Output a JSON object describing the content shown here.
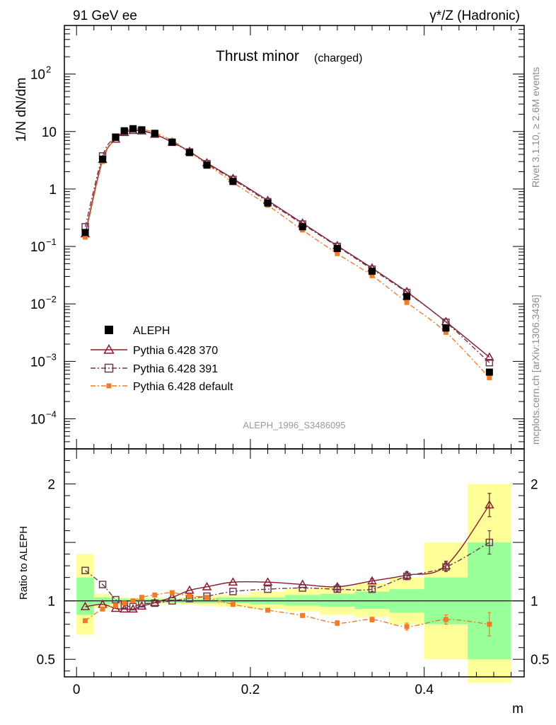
{
  "header": {
    "left": "91 GeV ee",
    "right": "γ*/Z (Hadronic)"
  },
  "side_labels": {
    "rivet": "Rivet 3.1.10, ≥ 2.6M events",
    "mcplots": "mcplots.cern.ch [arXiv:1306.3436]"
  },
  "chart_data": {
    "type": "line",
    "title_main": "Thrust minor",
    "title_sub": "(charged)",
    "analysis": "ALEPH_1996_S3486095",
    "xlabel": "m",
    "ylabel_main": "1/N dN/dm",
    "ylabel_ratio": "Ratio to ALEPH",
    "main_yscale": "log",
    "main_ylim": [
      3e-05,
      700
    ],
    "main_yticks": [
      {
        "v": 0.0001,
        "m": "10",
        "e": "−4"
      },
      {
        "v": 0.001,
        "m": "10",
        "e": "−3"
      },
      {
        "v": 0.01,
        "m": "10",
        "e": "−2"
      },
      {
        "v": 0.1,
        "m": "10",
        "e": "−1"
      },
      {
        "v": 1,
        "m": "1",
        "e": ""
      },
      {
        "v": 10,
        "m": "10",
        "e": ""
      },
      {
        "v": 100,
        "m": "10",
        "e": "2"
      }
    ],
    "xlim": [
      -0.014,
      0.515
    ],
    "xticks": [
      {
        "v": 0,
        "l": "0"
      },
      {
        "v": 0.2,
        "l": "0.2"
      },
      {
        "v": 0.4,
        "l": "0.4"
      }
    ],
    "ratio_ylim": [
      0.35,
      2.3
    ],
    "ratio_yticks": [
      {
        "v": 0.5,
        "l": "0.5"
      },
      {
        "v": 1,
        "l": "1"
      },
      {
        "v": 2,
        "l": "2"
      }
    ],
    "x": [
      0.01,
      0.03,
      0.045,
      0.055,
      0.065,
      0.075,
      0.09,
      0.11,
      0.13,
      0.15,
      0.18,
      0.22,
      0.26,
      0.3,
      0.34,
      0.38,
      0.425,
      0.475
    ],
    "bin_edges": [
      0,
      0.02,
      0.04,
      0.05,
      0.06,
      0.07,
      0.08,
      0.1,
      0.12,
      0.14,
      0.16,
      0.2,
      0.24,
      0.28,
      0.32,
      0.36,
      0.4,
      0.45,
      0.5
    ],
    "legend": [
      {
        "name": "ALEPH"
      },
      {
        "name": "Pythia 6.428 370"
      },
      {
        "name": "Pythia 6.428 391"
      },
      {
        "name": "Pythia 6.428 default"
      }
    ],
    "series": [
      {
        "name": "ALEPH",
        "marker": "filled-square",
        "color": "#000000",
        "values": [
          0.175,
          3.3,
          7.9,
          10.3,
          11.2,
          10.7,
          9.3,
          6.5,
          4.3,
          2.6,
          1.35,
          0.57,
          0.22,
          0.092,
          0.037,
          0.0135,
          0.0038,
          0.00065
        ]
      },
      {
        "name": "Pythia 6.428 370",
        "marker": "open-triangle",
        "color": "#8b1a2e",
        "values": [
          0.165,
          3.25,
          7.35,
          9.6,
          10.4,
          10.2,
          8.95,
          6.55,
          4.5,
          2.85,
          1.52,
          0.63,
          0.255,
          0.103,
          0.042,
          0.0163,
          0.0049,
          0.00118
        ],
        "ratio": [
          0.95,
          0.97,
          0.935,
          0.93,
          0.93,
          0.955,
          0.985,
          1.03,
          1.09,
          1.12,
          1.16,
          1.16,
          1.14,
          1.12,
          1.17,
          1.22,
          1.3,
          1.82
        ]
      },
      {
        "name": "Pythia 6.428 391",
        "marker": "open-square",
        "color": "#6b3a55",
        "values": [
          0.22,
          3.75,
          8.0,
          9.95,
          10.6,
          10.4,
          9.0,
          6.5,
          4.4,
          2.75,
          1.46,
          0.6,
          0.245,
          0.1,
          0.04,
          0.0158,
          0.0048,
          0.00095
        ],
        "ratio": [
          1.26,
          1.14,
          1.01,
          0.965,
          0.95,
          0.975,
          0.98,
          1.0,
          1.02,
          1.04,
          1.08,
          1.1,
          1.11,
          1.1,
          1.1,
          1.21,
          1.29,
          1.5
        ]
      },
      {
        "name": "Pythia 6.428 default",
        "marker": "filled-small-square",
        "color": "#f07c27",
        "values": [
          0.145,
          3.0,
          7.6,
          10.1,
          11.3,
          11.0,
          9.55,
          6.95,
          4.45,
          2.7,
          1.3,
          0.52,
          0.193,
          0.075,
          0.031,
          0.0106,
          0.0032,
          0.00052
        ],
        "ratio": [
          0.83,
          0.93,
          0.96,
          0.98,
          1.0,
          1.03,
          1.05,
          1.07,
          1.04,
          1.03,
          0.97,
          0.92,
          0.875,
          0.81,
          0.84,
          0.78,
          0.84,
          0.8
        ]
      }
    ],
    "band_green": [
      [
        0.88,
        1.2
      ],
      [
        0.97,
        1.03
      ],
      [
        0.98,
        1.02
      ],
      [
        0.98,
        1.02
      ],
      [
        0.985,
        1.015
      ],
      [
        0.985,
        1.015
      ],
      [
        0.985,
        1.015
      ],
      [
        0.985,
        1.015
      ],
      [
        0.98,
        1.02
      ],
      [
        0.98,
        1.02
      ],
      [
        0.98,
        1.03
      ],
      [
        0.97,
        1.03
      ],
      [
        0.96,
        1.05
      ],
      [
        0.95,
        1.06
      ],
      [
        0.93,
        1.08
      ],
      [
        0.9,
        1.1
      ],
      [
        0.8,
        1.2
      ],
      [
        0.5,
        1.5
      ]
    ],
    "band_yellow": [
      [
        0.71,
        1.4
      ],
      [
        0.94,
        1.06
      ],
      [
        0.97,
        1.03
      ],
      [
        0.97,
        1.03
      ],
      [
        0.975,
        1.025
      ],
      [
        0.975,
        1.025
      ],
      [
        0.975,
        1.025
      ],
      [
        0.975,
        1.025
      ],
      [
        0.97,
        1.03
      ],
      [
        0.96,
        1.04
      ],
      [
        0.95,
        1.05
      ],
      [
        0.93,
        1.08
      ],
      [
        0.91,
        1.1
      ],
      [
        0.88,
        1.12
      ],
      [
        0.86,
        1.15
      ],
      [
        0.8,
        1.2
      ],
      [
        0.5,
        1.5
      ],
      [
        0.3,
        2.0
      ]
    ],
    "ratio_err": [
      0,
      0,
      0,
      0,
      0,
      0,
      0,
      0,
      0,
      0,
      0,
      0,
      0,
      0.02,
      0.02,
      0.03,
      0.04,
      0.1
    ]
  }
}
